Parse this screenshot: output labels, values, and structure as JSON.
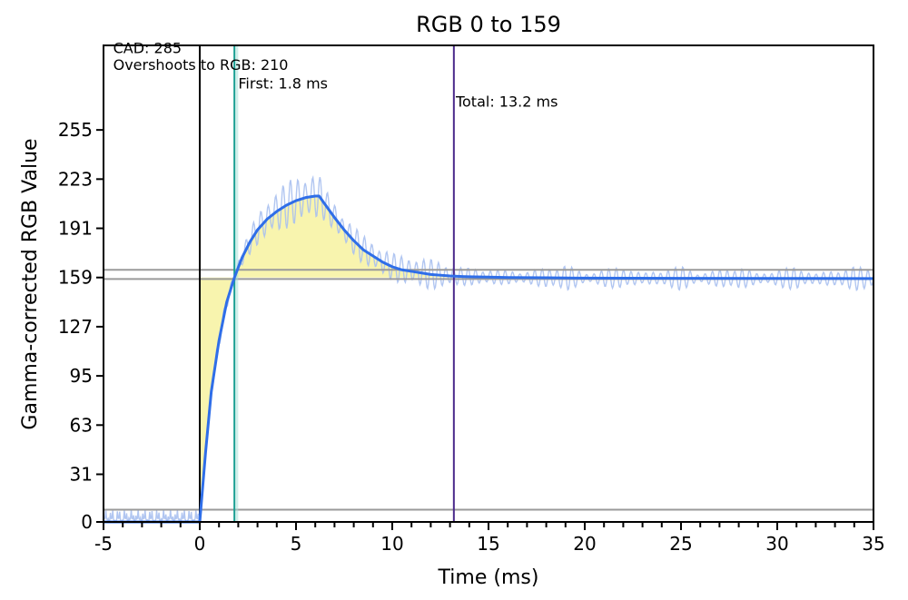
{
  "chart_data": {
    "type": "line",
    "title": "RGB 0 to 159",
    "xlabel": "Time (ms)",
    "ylabel": "Gamma-corrected RGB Value",
    "xlim": [
      -5,
      35
    ],
    "ylim": [
      0,
      310
    ],
    "x_ticks": [
      -5,
      0,
      5,
      10,
      15,
      20,
      25,
      30,
      35
    ],
    "y_ticks": [
      0,
      31,
      63,
      95,
      127,
      159,
      191,
      223,
      255
    ],
    "grid": false,
    "reference_lines": {
      "horizontal": [
        164,
        158,
        8
      ],
      "vertical": [
        {
          "x": 0,
          "color": "#000000"
        },
        {
          "x": 1.8,
          "color": "#1a9f93"
        },
        {
          "x": 13.2,
          "color": "#4b2a8c"
        }
      ]
    },
    "annotations": [
      {
        "text": "CAD: 285",
        "x": -4.5,
        "y": 305
      },
      {
        "text": "Overshoots to RGB: 210",
        "x": -4.5,
        "y": 294
      },
      {
        "text": "First: 1.8 ms",
        "x": 2.0,
        "y": 282
      },
      {
        "text": "Total: 13.2 ms",
        "x": 13.3,
        "y": 270
      }
    ],
    "series": [
      {
        "style": "smoothed",
        "color": "#2f6ee8",
        "x": [
          -5,
          -1,
          0,
          0.3,
          0.6,
          1.0,
          1.4,
          1.8,
          2.2,
          2.6,
          3.0,
          3.5,
          4.0,
          4.5,
          5.0,
          5.5,
          6.0,
          6.2,
          6.6,
          7.0,
          7.5,
          8.0,
          8.5,
          9.0,
          9.5,
          10.0,
          10.5,
          11.0,
          11.5,
          12.0,
          12.5,
          13.0,
          13.5,
          14.0,
          15.0,
          16.0,
          18.0,
          20.0,
          25.0,
          30.0,
          35.0
        ],
        "y": [
          0,
          0,
          0,
          45,
          85,
          118,
          143,
          159,
          172,
          182,
          190,
          197,
          202,
          206,
          209,
          211,
          212,
          212,
          205,
          198,
          190,
          183,
          177,
          173,
          169,
          166,
          164,
          163,
          162,
          161,
          160.5,
          160,
          159.7,
          159.5,
          159.3,
          159,
          158.8,
          158.6,
          158.5,
          158.4,
          158.3
        ]
      },
      {
        "style": "raw",
        "color": "#a8c0f0",
        "amplitude": [
          [
            -5,
            8
          ],
          [
            0,
            8
          ],
          [
            0.3,
            4
          ],
          [
            2,
            5
          ],
          [
            4,
            15
          ],
          [
            6,
            16
          ],
          [
            6.6,
            10
          ],
          [
            10,
            9
          ],
          [
            12,
            10
          ],
          [
            13.5,
            6
          ],
          [
            15,
            5
          ],
          [
            17,
            4
          ],
          [
            19,
            9
          ],
          [
            20,
            3
          ],
          [
            22,
            8
          ],
          [
            23,
            3
          ],
          [
            25,
            8
          ],
          [
            26,
            3
          ],
          [
            28,
            8
          ],
          [
            29,
            3
          ],
          [
            31,
            8
          ],
          [
            32,
            3
          ],
          [
            34,
            8
          ],
          [
            35,
            6
          ]
        ]
      }
    ]
  }
}
